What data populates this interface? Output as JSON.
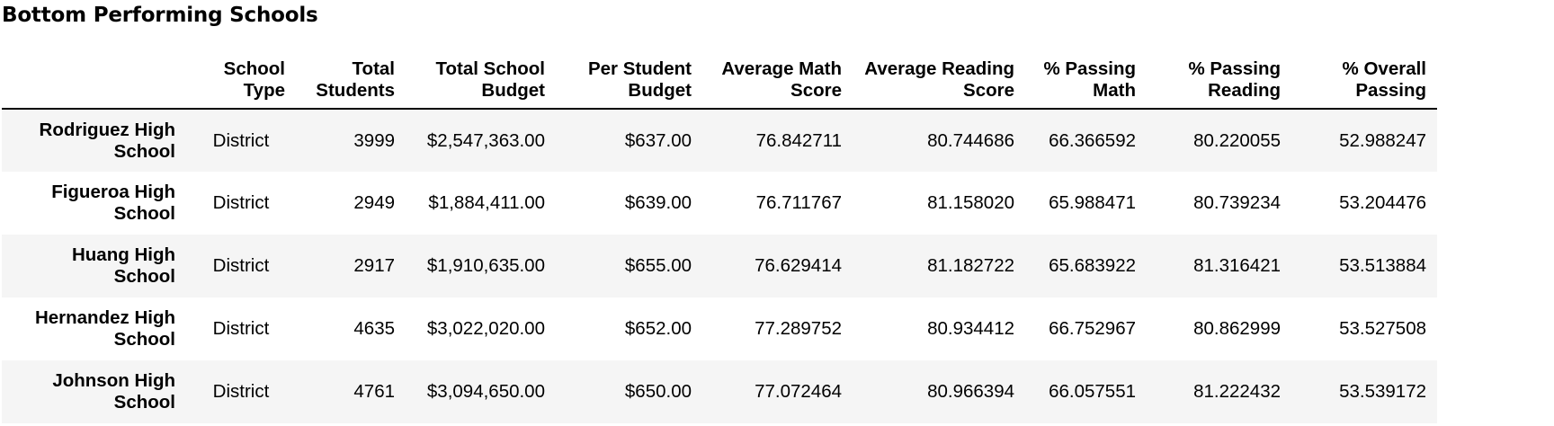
{
  "title": "Bottom Performing Schools",
  "table": {
    "columns": [
      "",
      "School Type",
      "Total Students",
      "Total School Budget",
      "Per Student Budget",
      "Average Math Score",
      "Average Reading Score",
      "% Passing Math",
      "% Passing Reading",
      "% Overall Passing"
    ],
    "rows": [
      {
        "school": "Rodriguez High School",
        "type": "District",
        "students": "3999",
        "budget": "$2,547,363.00",
        "per_student": "$637.00",
        "math": "76.842711",
        "reading": "80.744686",
        "pass_math": "66.366592",
        "pass_reading": "80.220055",
        "overall": "52.988247"
      },
      {
        "school": "Figueroa High School",
        "type": "District",
        "students": "2949",
        "budget": "$1,884,411.00",
        "per_student": "$639.00",
        "math": "76.711767",
        "reading": "81.158020",
        "pass_math": "65.988471",
        "pass_reading": "80.739234",
        "overall": "53.204476"
      },
      {
        "school": "Huang High School",
        "type": "District",
        "students": "2917",
        "budget": "$1,910,635.00",
        "per_student": "$655.00",
        "math": "76.629414",
        "reading": "81.182722",
        "pass_math": "65.683922",
        "pass_reading": "81.316421",
        "overall": "53.513884"
      },
      {
        "school": "Hernandez High School",
        "type": "District",
        "students": "4635",
        "budget": "$3,022,020.00",
        "per_student": "$652.00",
        "math": "77.289752",
        "reading": "80.934412",
        "pass_math": "66.752967",
        "pass_reading": "80.862999",
        "overall": "53.527508"
      },
      {
        "school": "Johnson High School",
        "type": "District",
        "students": "4761",
        "budget": "$3,094,650.00",
        "per_student": "$650.00",
        "math": "77.072464",
        "reading": "80.966394",
        "pass_math": "66.057551",
        "pass_reading": "81.222432",
        "overall": "53.539172"
      }
    ]
  }
}
